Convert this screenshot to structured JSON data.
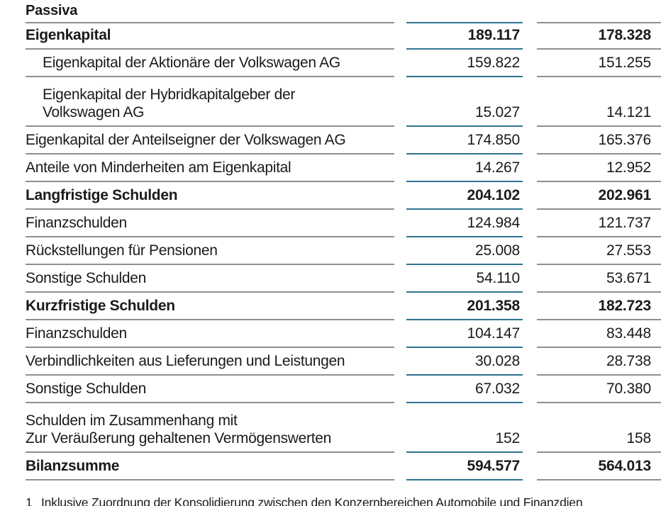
{
  "page": {
    "title": "Passiva"
  },
  "colors": {
    "accent_teal": "#2c758f",
    "rule_gray": "#8f8f8f",
    "text": "#1a1a1a"
  },
  "table": {
    "rows": [
      {
        "label": "Eigenkapital",
        "col1": "189.117",
        "col2": "178.328",
        "bold": true,
        "indent": false
      },
      {
        "label": "Eigenkapital der Aktionäre der Volkswagen AG",
        "col1": "159.822",
        "col2": "151.255",
        "bold": false,
        "indent": true
      },
      {
        "label": "Eigenkapital der Hybridkapitalgeber der\nVolkswagen AG",
        "col1": "15.027",
        "col2": "14.121",
        "bold": false,
        "indent": true
      },
      {
        "label": "Eigenkapital der Anteilseigner der Volkswagen AG",
        "col1": "174.850",
        "col2": "165.376",
        "bold": false,
        "indent": false
      },
      {
        "label": "Anteile von Minderheiten am Eigenkapital",
        "col1": "14.267",
        "col2": "12.952",
        "bold": false,
        "indent": false
      },
      {
        "label": "Langfristige Schulden",
        "col1": "204.102",
        "col2": "202.961",
        "bold": true,
        "indent": false
      },
      {
        "label": "Finanzschulden",
        "col1": "124.984",
        "col2": "121.737",
        "bold": false,
        "indent": false
      },
      {
        "label": "Rückstellungen für Pensionen",
        "col1": "25.008",
        "col2": "27.553",
        "bold": false,
        "indent": false
      },
      {
        "label": "Sonstige Schulden",
        "col1": "54.110",
        "col2": "53.671",
        "bold": false,
        "indent": false
      },
      {
        "label": "Kurzfristige Schulden",
        "col1": "201.358",
        "col2": "182.723",
        "bold": true,
        "indent": false
      },
      {
        "label": "Finanzschulden",
        "col1": "104.147",
        "col2": "83.448",
        "bold": false,
        "indent": false
      },
      {
        "label": "Verbindlichkeiten aus Lieferungen und Leistungen",
        "col1": "30.028",
        "col2": "28.738",
        "bold": false,
        "indent": false
      },
      {
        "label": "Sonstige Schulden",
        "col1": "67.032",
        "col2": "70.380",
        "bold": false,
        "indent": false
      },
      {
        "label": "Schulden im Zusammenhang mit\nZur Veräußerung gehaltenen Vermögenswerten",
        "col1": "152",
        "col2": "158",
        "bold": false,
        "indent": false
      },
      {
        "label": "Bilanzsumme",
        "col1": "594.577",
        "col2": "564.013",
        "bold": true,
        "indent": false
      }
    ]
  },
  "footnote": {
    "number": "1",
    "text": "Inklusive Zuordnung der Konsolidierung zwischen den Konzernbereichen Automobile und Finanzdien"
  }
}
